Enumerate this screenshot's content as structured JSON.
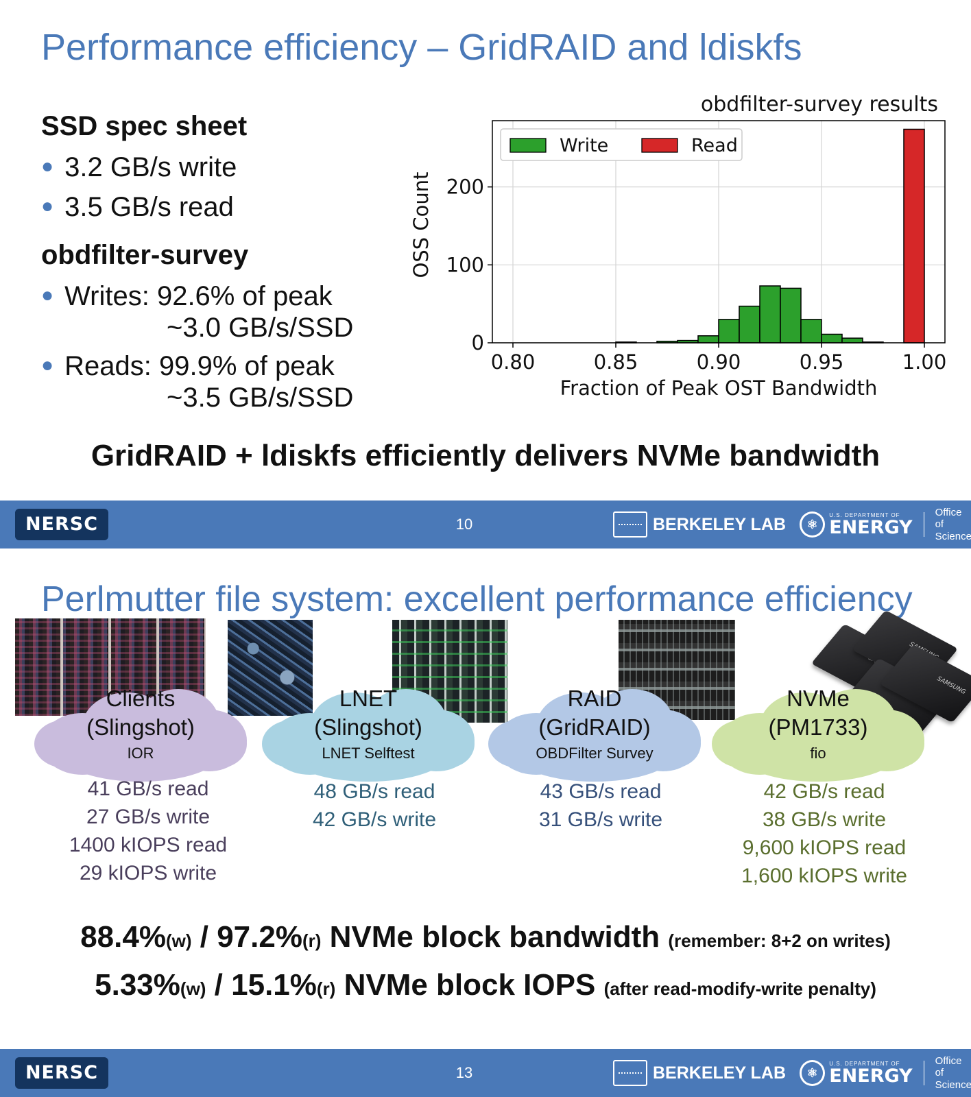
{
  "slide1": {
    "title": "Performance efficiency – GridRAID and ldiskfs",
    "ssd_heading": "SSD spec sheet",
    "ssd_bullets": [
      "3.2 GB/s write",
      "3.5 GB/s read"
    ],
    "survey_heading": "obdfilter-survey",
    "survey_bullets": [
      {
        "line1": "Writes: 92.6% of peak",
        "line2": "~3.0 GB/s/SSD"
      },
      {
        "line1": "Reads: 99.9% of peak",
        "line2": "~3.5 GB/s/SSD"
      }
    ],
    "conclusion": "GridRAID + ldiskfs efficiently delivers NVMe bandwidth",
    "page_number": "10"
  },
  "chart_data": {
    "type": "bar",
    "title": "obdfilter-survey results",
    "xlabel": "Fraction of Peak OST Bandwidth",
    "ylabel": "OSS Count",
    "xlim": [
      0.79,
      1.01
    ],
    "ylim": [
      0,
      285
    ],
    "x_ticks": [
      "0.80",
      "0.85",
      "0.90",
      "0.95",
      "1.00"
    ],
    "x_tick_values": [
      0.8,
      0.85,
      0.9,
      0.95,
      1.0
    ],
    "y_ticks": [
      "0",
      "100",
      "200"
    ],
    "y_tick_values": [
      0,
      100,
      200
    ],
    "grid": true,
    "legend_placement": "top-left",
    "bin_width": 0.01,
    "series": [
      {
        "name": "Write",
        "color": "#2ca02c",
        "bins": [
          {
            "x": 0.85,
            "value": 1
          },
          {
            "x": 0.87,
            "value": 2
          },
          {
            "x": 0.88,
            "value": 3
          },
          {
            "x": 0.89,
            "value": 9
          },
          {
            "x": 0.9,
            "value": 30
          },
          {
            "x": 0.91,
            "value": 47
          },
          {
            "x": 0.92,
            "value": 73
          },
          {
            "x": 0.93,
            "value": 70
          },
          {
            "x": 0.94,
            "value": 30
          },
          {
            "x": 0.95,
            "value": 11
          },
          {
            "x": 0.96,
            "value": 6
          },
          {
            "x": 0.97,
            "value": 1
          }
        ]
      },
      {
        "name": "Read",
        "color": "#d62728",
        "bins": [
          {
            "x": 0.99,
            "value": 274
          }
        ]
      }
    ]
  },
  "slide2": {
    "title": "Perlmutter file system: excellent performance efficiency",
    "layers": [
      {
        "title1": "Clients",
        "title2": "(Slingshot)",
        "tool": "IOR",
        "cloud_color": "#c9bcdd",
        "stats": [
          "41 GB/s read",
          "27 GB/s write",
          "1400 kIOPS read",
          "29 kIOPS write"
        ]
      },
      {
        "title1": "LNET",
        "title2": "(Slingshot)",
        "tool": "LNET Selftest",
        "cloud_color": "#a9d3e3",
        "stats": [
          "48 GB/s read",
          "42 GB/s write"
        ]
      },
      {
        "title1": "RAID",
        "title2": "(GridRAID)",
        "tool": "OBDFilter Survey",
        "cloud_color": "#b3c8e6",
        "stats": [
          "43 GB/s read",
          "31 GB/s write"
        ]
      },
      {
        "title1": "NVMe",
        "title2": "(PM1733)",
        "tool": "fio",
        "cloud_color": "#cfe3a6",
        "stats": [
          "42 GB/s read",
          "38 GB/s write",
          "9,600 kIOPS read",
          "1,600 kIOPS write"
        ]
      }
    ],
    "ssd_label": "SAMSUNG",
    "bandwidth_line": {
      "w": "88.4%",
      "w_sub": "(w)",
      "sep": " / ",
      "r": "97.2%",
      "r_sub": "(r)",
      "label": " NVMe block bandwidth ",
      "note": "(remember: 8+2 on writes)"
    },
    "iops_line": {
      "w": "5.33%",
      "w_sub": "(w)",
      "sep": " / ",
      "r": "15.1%",
      "r_sub": "(r)",
      "label": " NVMe block IOPS ",
      "note": "(after read-modify-write penalty)"
    },
    "page_number": "13"
  },
  "footer": {
    "nersc": "NERSC",
    "berkeley": "BERKELEY LAB",
    "doe_small": "U.S. DEPARTMENT OF",
    "doe_big": "ENERGY",
    "office1": "Office of",
    "office2": "Science"
  }
}
